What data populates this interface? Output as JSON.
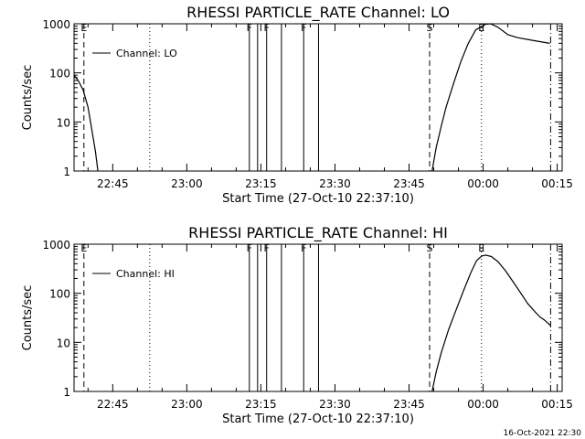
{
  "footer": {
    "stamp": "16-Oct-2021 22:30"
  },
  "chart_data": [
    {
      "type": "line",
      "title": "RHESSI PARTICLE_RATE Channel: LO",
      "xlabel": "Start Time (27-Oct-10 22:37:10)",
      "ylabel": "Counts/sec",
      "yscale": "log",
      "ylim": [
        1,
        1000
      ],
      "xlim": [
        "22:37:10",
        "00:16:00"
      ],
      "xticks": [
        "22:45",
        "23:00",
        "23:15",
        "23:30",
        "23:45",
        "00:00",
        "00:15"
      ],
      "yticks": [
        "1",
        "10",
        "100",
        "1000"
      ],
      "legend": "top-left",
      "series": [
        {
          "name": "Channel: LO",
          "segments": [
            [
              [
                "22:37:10",
                90
              ],
              [
                "22:38:00",
                70
              ],
              [
                "22:39:00",
                45
              ],
              [
                "22:40:00",
                20
              ],
              [
                "22:40:40",
                8
              ],
              [
                "22:41:30",
                2.5
              ],
              [
                "22:42:00",
                1
              ]
            ],
            [
              [
                "23:49:40",
                1
              ],
              [
                "23:50:30",
                3
              ],
              [
                "23:51:30",
                8
              ],
              [
                "23:52:30",
                20
              ],
              [
                "23:54:00",
                60
              ],
              [
                "23:55:30",
                170
              ],
              [
                "23:57:00",
                400
              ],
              [
                "23:58:30",
                750
              ],
              [
                "00:00:30",
                980
              ],
              [
                "00:01:30",
                1000
              ],
              [
                "00:03:00",
                850
              ],
              [
                "00:05:00",
                600
              ],
              [
                "00:07:00",
                520
              ],
              [
                "00:10:00",
                460
              ],
              [
                "00:13:30",
                400
              ]
            ]
          ]
        }
      ],
      "markers": [
        {
          "time": "22:39:10",
          "style": "dashed",
          "label": "E"
        },
        {
          "time": "22:52:30",
          "style": "dotted",
          "label": ""
        },
        {
          "time": "23:12:40",
          "style": "solid",
          "label": "F"
        },
        {
          "time": "23:14:20",
          "style": "solid",
          "label": ""
        },
        {
          "time": "23:16:10",
          "style": "solid",
          "label": "F"
        },
        {
          "time": "23:19:10",
          "style": "solid",
          "label": ""
        },
        {
          "time": "23:23:40",
          "style": "solid",
          "label": "F"
        },
        {
          "time": "23:26:40",
          "style": "solid",
          "label": ""
        },
        {
          "time": "23:49:10",
          "style": "dashed",
          "label": "S"
        },
        {
          "time": "23:59:40",
          "style": "dotted",
          "label": "E"
        },
        {
          "time": "00:13:40",
          "style": "dashdot",
          "label": ""
        }
      ]
    },
    {
      "type": "line",
      "title": "RHESSI PARTICLE_RATE Channel: HI",
      "xlabel": "Start Time (27-Oct-10 22:37:10)",
      "ylabel": "Counts/sec",
      "yscale": "log",
      "ylim": [
        1,
        1000
      ],
      "xlim": [
        "22:37:10",
        "00:16:00"
      ],
      "xticks": [
        "22:45",
        "23:00",
        "23:15",
        "23:30",
        "23:45",
        "00:00",
        "00:15"
      ],
      "yticks": [
        "1",
        "10",
        "100",
        "1000"
      ],
      "legend": "top-left",
      "series": [
        {
          "name": "Channel: HI",
          "segments": [
            [
              [
                "23:49:40",
                1
              ],
              [
                "23:50:30",
                2.5
              ],
              [
                "23:51:30",
                6
              ],
              [
                "23:53:00",
                18
              ],
              [
                "23:54:30",
                45
              ],
              [
                "23:56:00",
                110
              ],
              [
                "23:57:30",
                260
              ],
              [
                "23:58:40",
                460
              ],
              [
                "23:59:40",
                570
              ],
              [
                "00:00:30",
                600
              ],
              [
                "00:01:40",
                560
              ],
              [
                "00:03:00",
                440
              ],
              [
                "00:04:30",
                290
              ],
              [
                "00:06:00",
                175
              ],
              [
                "00:07:30",
                105
              ],
              [
                "00:09:00",
                62
              ],
              [
                "00:10:30",
                42
              ],
              [
                "00:11:30",
                33
              ],
              [
                "00:12:30",
                28
              ],
              [
                "00:13:40",
                22
              ]
            ]
          ]
        }
      ],
      "markers": [
        {
          "time": "22:39:10",
          "style": "dashed",
          "label": "E"
        },
        {
          "time": "22:52:30",
          "style": "dotted",
          "label": ""
        },
        {
          "time": "23:12:40",
          "style": "solid",
          "label": "F"
        },
        {
          "time": "23:14:20",
          "style": "solid",
          "label": ""
        },
        {
          "time": "23:16:10",
          "style": "solid",
          "label": "F"
        },
        {
          "time": "23:19:10",
          "style": "solid",
          "label": ""
        },
        {
          "time": "23:23:40",
          "style": "solid",
          "label": "F"
        },
        {
          "time": "23:26:40",
          "style": "solid",
          "label": ""
        },
        {
          "time": "23:49:10",
          "style": "dashed",
          "label": "S"
        },
        {
          "time": "23:59:40",
          "style": "dotted",
          "label": "E"
        },
        {
          "time": "00:13:40",
          "style": "dashdot",
          "label": ""
        }
      ]
    }
  ]
}
